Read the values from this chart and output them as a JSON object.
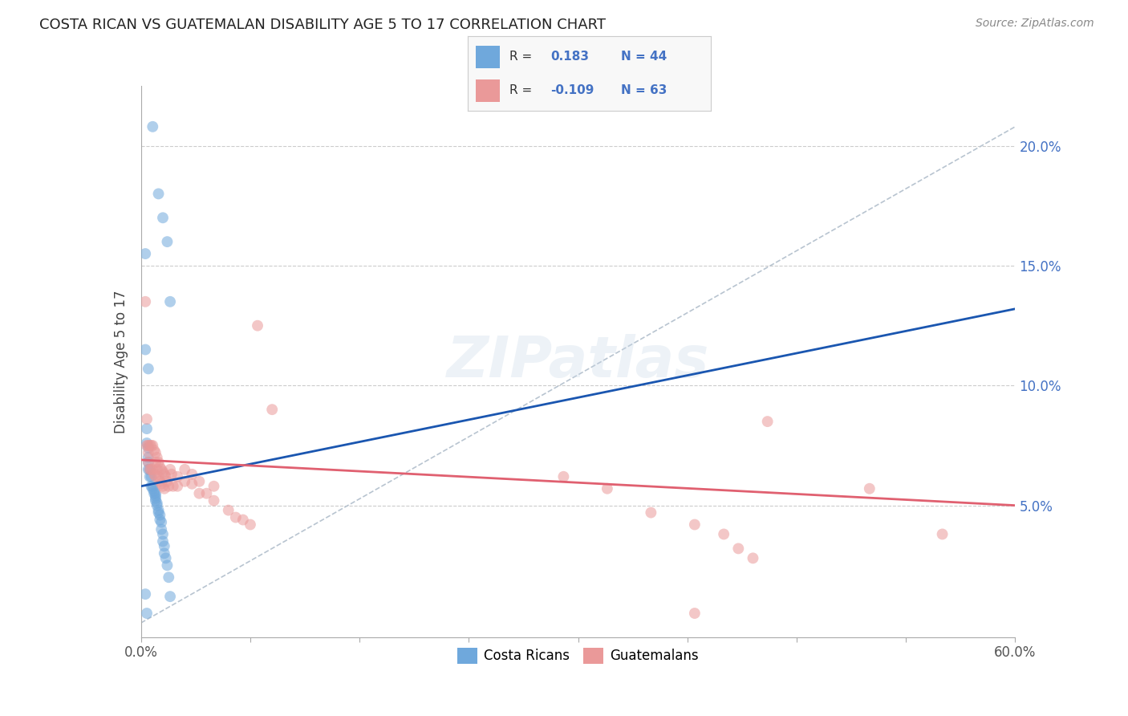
{
  "title": "COSTA RICAN VS GUATEMALAN DISABILITY AGE 5 TO 17 CORRELATION CHART",
  "source": "Source: ZipAtlas.com",
  "ylabel": "Disability Age 5 to 17",
  "xmin": 0.0,
  "xmax": 0.6,
  "ymin": -0.005,
  "ymax": 0.225,
  "xticks": [
    0.0,
    0.075,
    0.15,
    0.225,
    0.3,
    0.375,
    0.45,
    0.525,
    0.6
  ],
  "xticklabels_ends": [
    "0.0%",
    "60.0%"
  ],
  "yticks": [
    0.05,
    0.1,
    0.15,
    0.2
  ],
  "yticklabels_right": [
    "5.0%",
    "10.0%",
    "15.0%",
    "20.0%"
  ],
  "blue_color": "#6fa8dc",
  "pink_color": "#ea9999",
  "blue_line_color": "#1a56b0",
  "pink_line_color": "#e06070",
  "dash_line_color": "#b8c4d0",
  "watermark": "ZIPatlas",
  "blue_scatter_x": [
    0.008,
    0.012,
    0.015,
    0.018,
    0.02,
    0.003,
    0.003,
    0.004,
    0.004,
    0.005,
    0.005,
    0.005,
    0.006,
    0.006,
    0.007,
    0.007,
    0.008,
    0.008,
    0.009,
    0.009,
    0.01,
    0.01,
    0.01,
    0.01,
    0.011,
    0.011,
    0.012,
    0.012,
    0.013,
    0.013,
    0.014,
    0.014,
    0.015,
    0.015,
    0.016,
    0.016,
    0.017,
    0.018,
    0.019,
    0.02,
    0.003,
    0.004,
    0.005,
    0.005
  ],
  "blue_scatter_y": [
    0.208,
    0.18,
    0.17,
    0.16,
    0.135,
    0.155,
    0.115,
    0.082,
    0.076,
    0.074,
    0.07,
    0.068,
    0.065,
    0.062,
    0.062,
    0.058,
    0.058,
    0.057,
    0.056,
    0.055,
    0.055,
    0.054,
    0.053,
    0.052,
    0.051,
    0.05,
    0.048,
    0.047,
    0.046,
    0.044,
    0.043,
    0.04,
    0.038,
    0.035,
    0.033,
    0.03,
    0.028,
    0.025,
    0.02,
    0.012,
    0.013,
    0.005,
    0.065,
    0.107
  ],
  "pink_scatter_x": [
    0.003,
    0.004,
    0.004,
    0.005,
    0.005,
    0.005,
    0.006,
    0.006,
    0.007,
    0.007,
    0.008,
    0.008,
    0.009,
    0.009,
    0.01,
    0.01,
    0.01,
    0.011,
    0.011,
    0.012,
    0.012,
    0.013,
    0.013,
    0.014,
    0.014,
    0.015,
    0.015,
    0.016,
    0.016,
    0.017,
    0.018,
    0.019,
    0.02,
    0.021,
    0.022,
    0.025,
    0.025,
    0.03,
    0.03,
    0.035,
    0.035,
    0.04,
    0.04,
    0.045,
    0.05,
    0.05,
    0.06,
    0.065,
    0.07,
    0.075,
    0.08,
    0.09,
    0.29,
    0.32,
    0.35,
    0.38,
    0.4,
    0.41,
    0.42,
    0.43,
    0.5,
    0.55,
    0.38
  ],
  "pink_scatter_y": [
    0.135,
    0.086,
    0.075,
    0.075,
    0.072,
    0.068,
    0.075,
    0.065,
    0.075,
    0.065,
    0.075,
    0.065,
    0.073,
    0.063,
    0.072,
    0.068,
    0.062,
    0.07,
    0.065,
    0.068,
    0.062,
    0.066,
    0.06,
    0.065,
    0.059,
    0.064,
    0.058,
    0.063,
    0.057,
    0.062,
    0.06,
    0.058,
    0.065,
    0.063,
    0.058,
    0.062,
    0.058,
    0.065,
    0.06,
    0.063,
    0.059,
    0.06,
    0.055,
    0.055,
    0.058,
    0.052,
    0.048,
    0.045,
    0.044,
    0.042,
    0.125,
    0.09,
    0.062,
    0.057,
    0.047,
    0.042,
    0.038,
    0.032,
    0.028,
    0.085,
    0.057,
    0.038,
    0.005
  ],
  "blue_trend_x": [
    0.0,
    0.6
  ],
  "blue_trend_y": [
    0.058,
    0.132
  ],
  "pink_trend_x": [
    0.0,
    0.6
  ],
  "pink_trend_y": [
    0.069,
    0.05
  ],
  "dash_trend_x": [
    0.0,
    0.6
  ],
  "dash_trend_y": [
    0.001,
    0.208
  ]
}
